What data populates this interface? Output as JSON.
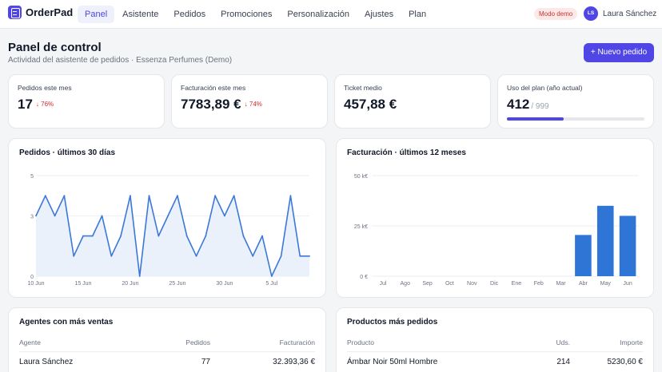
{
  "app": {
    "name": "OrderPad"
  },
  "nav": {
    "items": [
      {
        "label": "Panel",
        "active": true
      },
      {
        "label": "Asistente",
        "active": false
      },
      {
        "label": "Pedidos",
        "active": false
      },
      {
        "label": "Promociones",
        "active": false
      },
      {
        "label": "Personalización",
        "active": false
      },
      {
        "label": "Ajustes",
        "active": false
      },
      {
        "label": "Plan",
        "active": false
      }
    ]
  },
  "header": {
    "demo_badge": "Modo demo",
    "user_initials": "LS",
    "user_name": "Laura Sánchez"
  },
  "page": {
    "title": "Panel de control",
    "subtitle": "Actividad del asistente de pedidos · Essenza Perfumes (Demo)",
    "new_order_label": "+ Nuevo pedido"
  },
  "kpis": [
    {
      "label": "Pedidos este mes",
      "value": "17",
      "delta": "76%"
    },
    {
      "label": "Facturación este mes",
      "value": "7783,89 €",
      "delta": "74%"
    },
    {
      "label": "Ticket medio",
      "value": "457,88 €"
    },
    {
      "label": "Uso del plan (año actual)",
      "value": "412",
      "max": "/ 999",
      "progress": 0.412
    }
  ],
  "colors": {
    "accent": "#4f46e5",
    "line": "#3b78d8",
    "bar": "#2f75d6",
    "negative": "#dc2626"
  },
  "chart_data": [
    {
      "type": "line",
      "title": "Pedidos · últimos 30 días",
      "x": [
        "10 Jun",
        "11 Jun",
        "12 Jun",
        "13 Jun",
        "14 Jun",
        "15 Jun",
        "16 Jun",
        "17 Jun",
        "18 Jun",
        "19 Jun",
        "20 Jun",
        "21 Jun",
        "22 Jun",
        "23 Jun",
        "24 Jun",
        "25 Jun",
        "26 Jun",
        "27 Jun",
        "28 Jun",
        "29 Jun",
        "30 Jun",
        "1 Jul",
        "2 Jul",
        "3 Jul",
        "4 Jul",
        "5 Jul",
        "6 Jul",
        "7 Jul",
        "8 Jul",
        "9 Jul"
      ],
      "x_tick_labels": [
        "10 Jun",
        "15 Jun",
        "20 Jun",
        "25 Jun",
        "30 Jun",
        "5 Jul"
      ],
      "y_tick_labels": [
        "0",
        "3",
        "5"
      ],
      "values": [
        3,
        4,
        3,
        4,
        1,
        2,
        2,
        3,
        1,
        2,
        4,
        0,
        4,
        2,
        3,
        4,
        2,
        1,
        2,
        4,
        3,
        4,
        2,
        1,
        2,
        0,
        1,
        4,
        1,
        1
      ],
      "ylim": [
        0,
        5
      ],
      "grid": true
    },
    {
      "type": "bar",
      "title": "Facturación · últimos 12 meses",
      "categories": [
        "Jul",
        "Ago",
        "Sep",
        "Oct",
        "Nov",
        "Dic",
        "Ene",
        "Feb",
        "Mar",
        "Abr",
        "May",
        "Jun"
      ],
      "values": [
        0,
        0,
        0,
        0,
        0,
        0,
        0,
        0,
        0,
        20500,
        35000,
        30000
      ],
      "y_tick_labels": [
        "0 €",
        "25 k€",
        "50 k€"
      ],
      "ylim": [
        0,
        50000
      ],
      "grid": true
    }
  ],
  "tables": {
    "agents": {
      "title": "Agentes con más ventas",
      "columns": [
        "Agente",
        "Pedidos",
        "Facturación"
      ],
      "rows": [
        [
          "Laura Sánchez",
          "77",
          "32.393,36 €"
        ]
      ]
    },
    "products": {
      "title": "Productos más pedidos",
      "columns": [
        "Producto",
        "Uds.",
        "Importe"
      ],
      "rows": [
        [
          "Ámbar Noir 50ml Hombre",
          "214",
          "5230,60 €"
        ]
      ]
    }
  }
}
